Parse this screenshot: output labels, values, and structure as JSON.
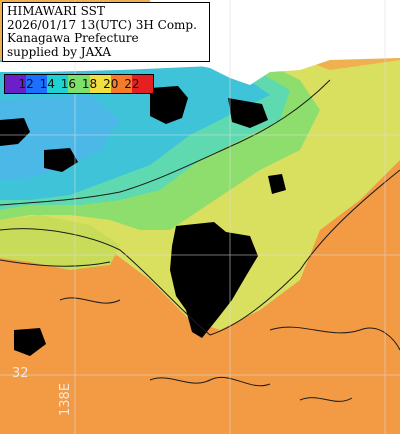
{
  "title": {
    "lines": [
      "HIMAWARI SST",
      "2026/01/17 13(UTC) 3H Comp.",
      "Kanagawa Prefecture",
      "supplied by JAXA"
    ]
  },
  "legend": {
    "labels": [
      "12",
      "14",
      "16",
      "18",
      "20",
      "22"
    ],
    "colors": [
      "#6a1fc8",
      "#1c6fff",
      "#1ed2d2",
      "#7de06a",
      "#f0e040",
      "#f57a2a",
      "#e52020"
    ]
  },
  "grid": {
    "lat_label": "32",
    "lon_label": "138E"
  },
  "palette": {
    "land": "#ffffff",
    "cloud": "#000000",
    "cold": "#3fc3d8",
    "cool": "#5ed9b0",
    "mid": "#8ede6e",
    "warm": "#d9e060",
    "warmer": "#f0b050",
    "sea": "#f39a45",
    "contour": "#1a1a1a",
    "gridline": "#dddddd"
  }
}
